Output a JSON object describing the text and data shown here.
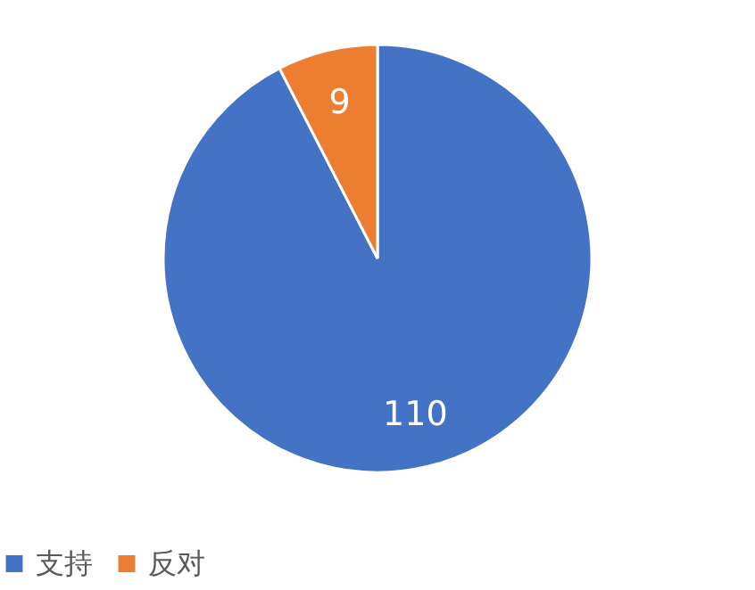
{
  "chart_data": {
    "type": "pie",
    "categories": [
      "支持",
      "反对"
    ],
    "values": [
      110,
      9
    ],
    "colors": [
      "#4472c4",
      "#ed7d31"
    ],
    "data_labels": true,
    "legend": "bottom"
  }
}
